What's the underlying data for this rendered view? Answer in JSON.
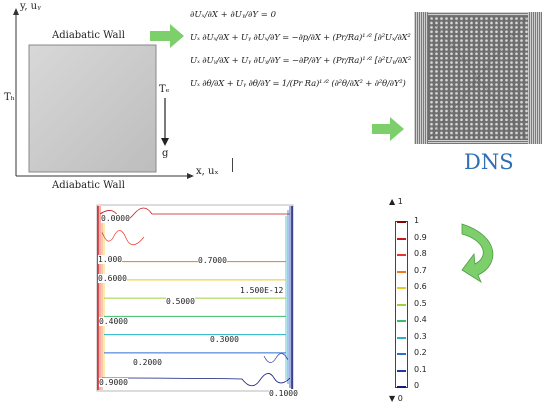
{
  "domain_text": {
    "y_axis": "y, uᵧ",
    "x_axis": "x, uₓ",
    "top_wall": "Adiabatic Wall",
    "bottom_wall": "Adiabatic Wall",
    "hot_side": "Tₕ",
    "cold_side": "Tₑ",
    "gravity": "g"
  },
  "equations": [
    "∂Uₓ/∂X + ∂Uᵧ/∂Y = 0",
    "Uₓ ∂Uₓ/∂X + Uᵧ ∂Uₓ/∂Y = −∂p/∂X + (Pr/Ra)¹ᐟ² [∂²Uₓ/∂X² + ∂²Uₓ/∂Y²]",
    "Uₓ ∂Uᵧ/∂X + Uᵧ ∂Uᵧ/∂Y = −∂P/∂Y + (Pr/Ra)¹ᐟ² [∂²Uᵧ/∂X² + ∂²Uᵧ/∂Y²] + θ",
    "Uₓ ∂θ/∂X + Uᵧ ∂θ/∂Y = 1/(Pr Ra)¹ᐟ² (∂²θ/∂X² + ∂²θ/∂Y²)"
  ],
  "method_label": "DNS",
  "contour_labels": [
    "0.0000",
    "1.000",
    "0.6000",
    "0.7000",
    "0.5000",
    "1.500E-12",
    "0.4000",
    "0.3000",
    "0.2000",
    "0.9000",
    "0.1000"
  ],
  "colorbar": {
    "max_label": "▲ 1",
    "min_label": "▼ 0",
    "ticks": [
      "1",
      "0.9",
      "0.8",
      "0.7",
      "0.6",
      "0.5",
      "0.4",
      "0.3",
      "0.2",
      "0.1",
      "0"
    ],
    "colors": [
      "#8b0000",
      "#c8161b",
      "#e8352a",
      "#f07a1a",
      "#f2c81c",
      "#9fd13a",
      "#3dbb6a",
      "#22b3c8",
      "#2a6fd0",
      "#2035b0",
      "#101a7a"
    ]
  },
  "contour_lines": [
    {
      "value": 0.7,
      "color": "#f07a1a"
    },
    {
      "value": 0.6,
      "color": "#f2c81c"
    },
    {
      "value": 0.5,
      "color": "#9fd13a"
    },
    {
      "value": 0.4,
      "color": "#3dbb6a"
    },
    {
      "value": 0.3,
      "color": "#22b3c8"
    },
    {
      "value": 0.2,
      "color": "#2a6fd0"
    }
  ],
  "colors": {
    "arrow_green": "#7ccf6a",
    "dns_blue": "#2f6fb3",
    "cavity_fill": "#cfcfcf"
  }
}
